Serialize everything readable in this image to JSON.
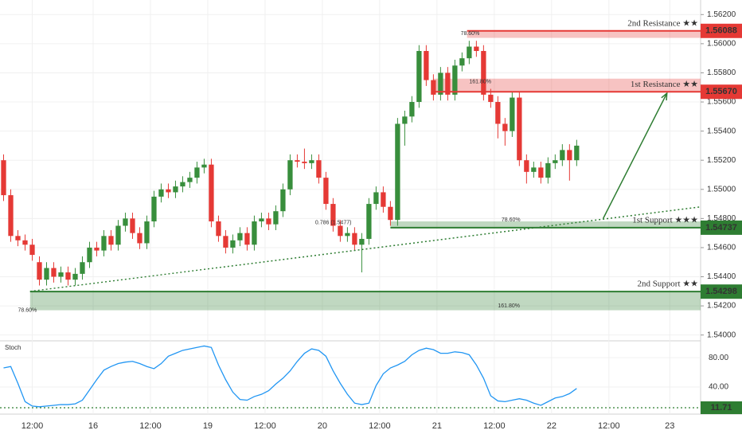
{
  "chart_data": {
    "type": "candlestick",
    "xlim": [
      -0.5,
      97.3
    ],
    "xticks": [
      {
        "value": 4,
        "label": "12:00"
      },
      {
        "value": 12.5,
        "label": "16"
      },
      {
        "value": 20.5,
        "label": "12:00"
      },
      {
        "value": 28.5,
        "label": "19"
      },
      {
        "value": 36.5,
        "label": "12:00"
      },
      {
        "value": 44.5,
        "label": "20"
      },
      {
        "value": 52.5,
        "label": "12:00"
      },
      {
        "value": 60.5,
        "label": "21"
      },
      {
        "value": 68.5,
        "label": "12:00"
      },
      {
        "value": 76.5,
        "label": "22"
      },
      {
        "value": 84.5,
        "label": "12:00"
      },
      {
        "value": 93,
        "label": "23"
      }
    ],
    "ylim": [
      1.5396,
      1.563
    ],
    "yticks": [
      {
        "value": 1.54,
        "label": "1.54000"
      },
      {
        "value": 1.542,
        "label": "1.54200"
      },
      {
        "value": 1.544,
        "label": "1.54400"
      },
      {
        "value": 1.546,
        "label": "1.54600"
      },
      {
        "value": 1.548,
        "label": "1.54800"
      },
      {
        "value": 1.55,
        "label": "1.55000"
      },
      {
        "value": 1.552,
        "label": "1.55200"
      },
      {
        "value": 1.554,
        "label": "1.55400"
      },
      {
        "value": 1.556,
        "label": "1.55600"
      },
      {
        "value": 1.558,
        "label": "1.55800"
      },
      {
        "value": 1.56,
        "label": "1.56000"
      },
      {
        "value": 1.562,
        "label": "1.56200"
      }
    ],
    "up_color": "#388e3c",
    "down_color": "#e53935",
    "open": [
      1.552,
      1.5496,
      1.5468,
      1.5465,
      1.5462,
      1.545,
      1.5438,
      1.5446,
      1.544,
      1.5443,
      1.5438,
      1.5442,
      1.545,
      1.546,
      1.5458,
      1.5468,
      1.5462,
      1.5475,
      1.548,
      1.547,
      1.5463,
      1.5478,
      1.5495,
      1.55,
      1.5498,
      1.5502,
      1.5505,
      1.5508,
      1.5515,
      1.5517,
      1.5478,
      1.5468,
      1.546,
      1.5465,
      1.547,
      1.5462,
      1.5478,
      1.548,
      1.5476,
      1.5485,
      1.55,
      1.552,
      1.5519,
      1.5518,
      1.552,
      1.5508,
      1.549,
      1.5475,
      1.5468,
      1.547,
      1.5462,
      1.5466,
      1.549,
      1.5498,
      1.5488,
      1.5479,
      1.5545,
      1.555,
      1.556,
      1.5595,
      1.5575,
      1.5565,
      1.558,
      1.5565,
      1.5585,
      1.559,
      1.5598,
      1.5595,
      1.5565,
      1.556,
      1.5545,
      1.554,
      1.5563,
      1.552,
      1.5512,
      1.5515,
      1.5508,
      1.5518,
      1.552,
      1.5527,
      1.552
    ],
    "high": [
      1.5524,
      1.55,
      1.5472,
      1.5469,
      1.5466,
      1.5454,
      1.545,
      1.545,
      1.5447,
      1.5447,
      1.5446,
      1.5454,
      1.5464,
      1.5464,
      1.5472,
      1.5472,
      1.5479,
      1.5484,
      1.5484,
      1.5474,
      1.5482,
      1.5499,
      1.5504,
      1.5504,
      1.5506,
      1.5509,
      1.5512,
      1.5519,
      1.5521,
      1.5521,
      1.5482,
      1.5472,
      1.5469,
      1.5474,
      1.5474,
      1.5482,
      1.5484,
      1.5484,
      1.5489,
      1.5504,
      1.5524,
      1.5524,
      1.5528,
      1.5524,
      1.5524,
      1.5512,
      1.5494,
      1.5479,
      1.5474,
      1.5474,
      1.547,
      1.5494,
      1.5502,
      1.5502,
      1.5492,
      1.5549,
      1.5554,
      1.5564,
      1.5599,
      1.5599,
      1.5579,
      1.5584,
      1.5584,
      1.5589,
      1.5594,
      1.5602,
      1.5602,
      1.5599,
      1.5569,
      1.5564,
      1.5549,
      1.5567,
      1.5567,
      1.5524,
      1.5519,
      1.5519,
      1.5522,
      1.5524,
      1.5531,
      1.5531,
      1.5534
    ],
    "low": [
      1.5492,
      1.5464,
      1.5461,
      1.5458,
      1.5451,
      1.5434,
      1.5434,
      1.5436,
      1.5436,
      1.5434,
      1.5434,
      1.5438,
      1.5446,
      1.5454,
      1.5454,
      1.5458,
      1.5458,
      1.5471,
      1.5466,
      1.5459,
      1.5459,
      1.5474,
      1.5491,
      1.5494,
      1.5494,
      1.5498,
      1.5501,
      1.5504,
      1.5511,
      1.5474,
      1.5464,
      1.5456,
      1.5456,
      1.5461,
      1.5458,
      1.5458,
      1.5474,
      1.5472,
      1.5472,
      1.5481,
      1.5496,
      1.5515,
      1.5514,
      1.5514,
      1.5504,
      1.5486,
      1.5471,
      1.5464,
      1.5464,
      1.5458,
      1.5443,
      1.5462,
      1.5486,
      1.5484,
      1.5475,
      1.5475,
      1.553,
      1.5546,
      1.5556,
      1.5571,
      1.5561,
      1.5561,
      1.5561,
      1.5561,
      1.5581,
      1.5586,
      1.5591,
      1.5561,
      1.5556,
      1.5535,
      1.553,
      1.5536,
      1.5516,
      1.5504,
      1.5508,
      1.5504,
      1.5504,
      1.5514,
      1.5516,
      1.5506,
      1.5516
    ],
    "close": [
      1.5496,
      1.5468,
      1.5465,
      1.5462,
      1.5455,
      1.5438,
      1.5446,
      1.544,
      1.5443,
      1.5438,
      1.5442,
      1.545,
      1.546,
      1.5458,
      1.5468,
      1.5462,
      1.5475,
      1.548,
      1.547,
      1.5463,
      1.5478,
      1.5495,
      1.55,
      1.5498,
      1.5502,
      1.5505,
      1.5508,
      1.5515,
      1.5517,
      1.5478,
      1.5468,
      1.546,
      1.5465,
      1.547,
      1.5462,
      1.5478,
      1.548,
      1.5476,
      1.5485,
      1.55,
      1.552,
      1.5519,
      1.5518,
      1.552,
      1.5508,
      1.549,
      1.5475,
      1.5468,
      1.547,
      1.5462,
      1.5466,
      1.549,
      1.5498,
      1.5488,
      1.5479,
      1.5545,
      1.555,
      1.556,
      1.5595,
      1.5575,
      1.5565,
      1.558,
      1.5565,
      1.5585,
      1.559,
      1.5598,
      1.5595,
      1.5565,
      1.556,
      1.5545,
      1.554,
      1.5563,
      1.552,
      1.5512,
      1.5515,
      1.5508,
      1.5518,
      1.552,
      1.5527,
      1.552,
      1.553
    ],
    "levels": [
      {
        "name": "2nd Resistance ★★",
        "price": {
          "value": 1.56088,
          "label": "1.56088"
        },
        "zone": [
          1.5604,
          1.56088
        ],
        "start": 64.7,
        "color": "#e53935"
      },
      {
        "name": "1st Resistance ★★",
        "price": {
          "value": 1.5567,
          "label": "1.55670"
        },
        "zone": [
          1.5567,
          1.5576
        ],
        "start": 60,
        "color": "#e53935"
      },
      {
        "name": "1st Support ★★★",
        "price": {
          "value": 1.54737,
          "label": "1.54737"
        },
        "zone": [
          1.54737,
          1.5478
        ],
        "start": 54,
        "color": "#2e7d32"
      },
      {
        "name": "2nd Support ★★",
        "price": {
          "value": 1.54298,
          "label": "1.54298"
        },
        "zone": [
          1.5417,
          1.54298
        ],
        "start": 3.7,
        "color": "#2e7d32"
      }
    ],
    "annotations": [
      {
        "text": "78.60%",
        "x": 63.8,
        "price": 1.5607,
        "color": "#4a90c8"
      },
      {
        "text": "161.80%",
        "x": 65,
        "price": 1.5574,
        "color": "#e57373"
      },
      {
        "text": "0.786 (1.5477)",
        "x": 43.5,
        "price": 1.5477,
        "color": "#9c27b0"
      },
      {
        "text": "78.60%",
        "x": 69.5,
        "price": 1.5479,
        "color": "#66bb6a"
      },
      {
        "text": "78.60%",
        "x": 2,
        "price": 1.5417,
        "color": "#4a90c8"
      },
      {
        "text": "161.80%",
        "x": 69,
        "price": 1.542,
        "color": "#c0a030"
      }
    ],
    "trendline": {
      "x": [
        3.7,
        97.3
      ],
      "y": [
        1.543,
        1.5488
      ],
      "color": "#2e7d32"
    },
    "arrow": {
      "x": [
        83.7,
        92.6
      ],
      "y": [
        1.548,
        1.5566
      ],
      "color": "#2e7d32"
    },
    "stoch": {
      "name": "Stoch",
      "color": "#2196f3",
      "ylim": [
        3,
        103
      ],
      "yticks": [
        {
          "value": 80,
          "label": "80.00"
        },
        {
          "value": 40,
          "label": "40.00"
        }
      ],
      "level": {
        "value": 11.71,
        "label": "11.71"
      },
      "level_color": "#2e7d32",
      "values": [
        66,
        68,
        45,
        20,
        14,
        13,
        14,
        15,
        16,
        16,
        17,
        22,
        36,
        50,
        63,
        68,
        72,
        74,
        75,
        72,
        68,
        65,
        72,
        82,
        86,
        90,
        92,
        94,
        96,
        94,
        70,
        50,
        33,
        23,
        22,
        27,
        30,
        35,
        44,
        52,
        62,
        75,
        86,
        92,
        90,
        82,
        62,
        45,
        30,
        18,
        16,
        18,
        42,
        58,
        66,
        70,
        75,
        84,
        90,
        93,
        91,
        86,
        86,
        88,
        87,
        84,
        70,
        52,
        28,
        21,
        20,
        22,
        24,
        22,
        18,
        15,
        20,
        25,
        27,
        31,
        38
      ]
    }
  }
}
